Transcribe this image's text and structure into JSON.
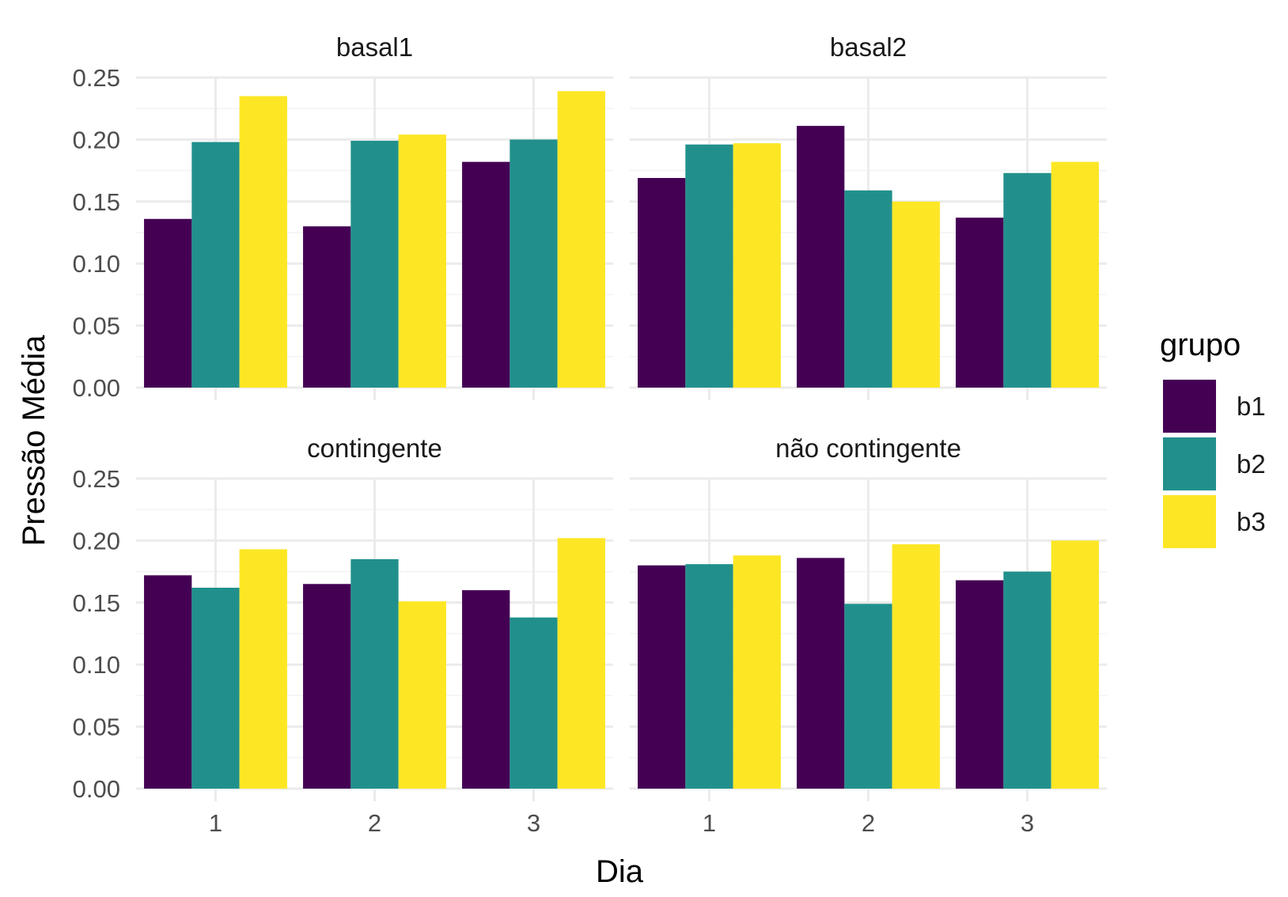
{
  "chart_data": {
    "type": "bar",
    "xlabel": "Dia",
    "ylabel": "Pressão Média",
    "categories": [
      "1",
      "2",
      "3"
    ],
    "ylim": [
      0,
      0.25
    ],
    "yticks": [
      "0.00",
      "0.05",
      "0.10",
      "0.15",
      "0.20",
      "0.25"
    ],
    "grid": true,
    "legend": {
      "title": "grupo",
      "position": "right",
      "entries": [
        {
          "name": "b1",
          "color": "#440154"
        },
        {
          "name": "b2",
          "color": "#21908C"
        },
        {
          "name": "b3",
          "color": "#FDE725"
        }
      ]
    },
    "facets": [
      {
        "label": "basal1",
        "series": [
          {
            "name": "b1",
            "values": [
              0.136,
              0.13,
              0.182
            ]
          },
          {
            "name": "b2",
            "values": [
              0.198,
              0.199,
              0.2
            ]
          },
          {
            "name": "b3",
            "values": [
              0.235,
              0.204,
              0.239
            ]
          }
        ]
      },
      {
        "label": "basal2",
        "series": [
          {
            "name": "b1",
            "values": [
              0.169,
              0.211,
              0.137
            ]
          },
          {
            "name": "b2",
            "values": [
              0.196,
              0.159,
              0.173
            ]
          },
          {
            "name": "b3",
            "values": [
              0.197,
              0.15,
              0.182
            ]
          }
        ]
      },
      {
        "label": "contingente",
        "series": [
          {
            "name": "b1",
            "values": [
              0.172,
              0.165,
              0.16
            ]
          },
          {
            "name": "b2",
            "values": [
              0.162,
              0.185,
              0.138
            ]
          },
          {
            "name": "b3",
            "values": [
              0.193,
              0.151,
              0.202
            ]
          }
        ]
      },
      {
        "label": "não contingente",
        "series": [
          {
            "name": "b1",
            "values": [
              0.18,
              0.186,
              0.168
            ]
          },
          {
            "name": "b2",
            "values": [
              0.181,
              0.149,
              0.175
            ]
          },
          {
            "name": "b3",
            "values": [
              0.188,
              0.197,
              0.2
            ]
          }
        ]
      }
    ]
  }
}
